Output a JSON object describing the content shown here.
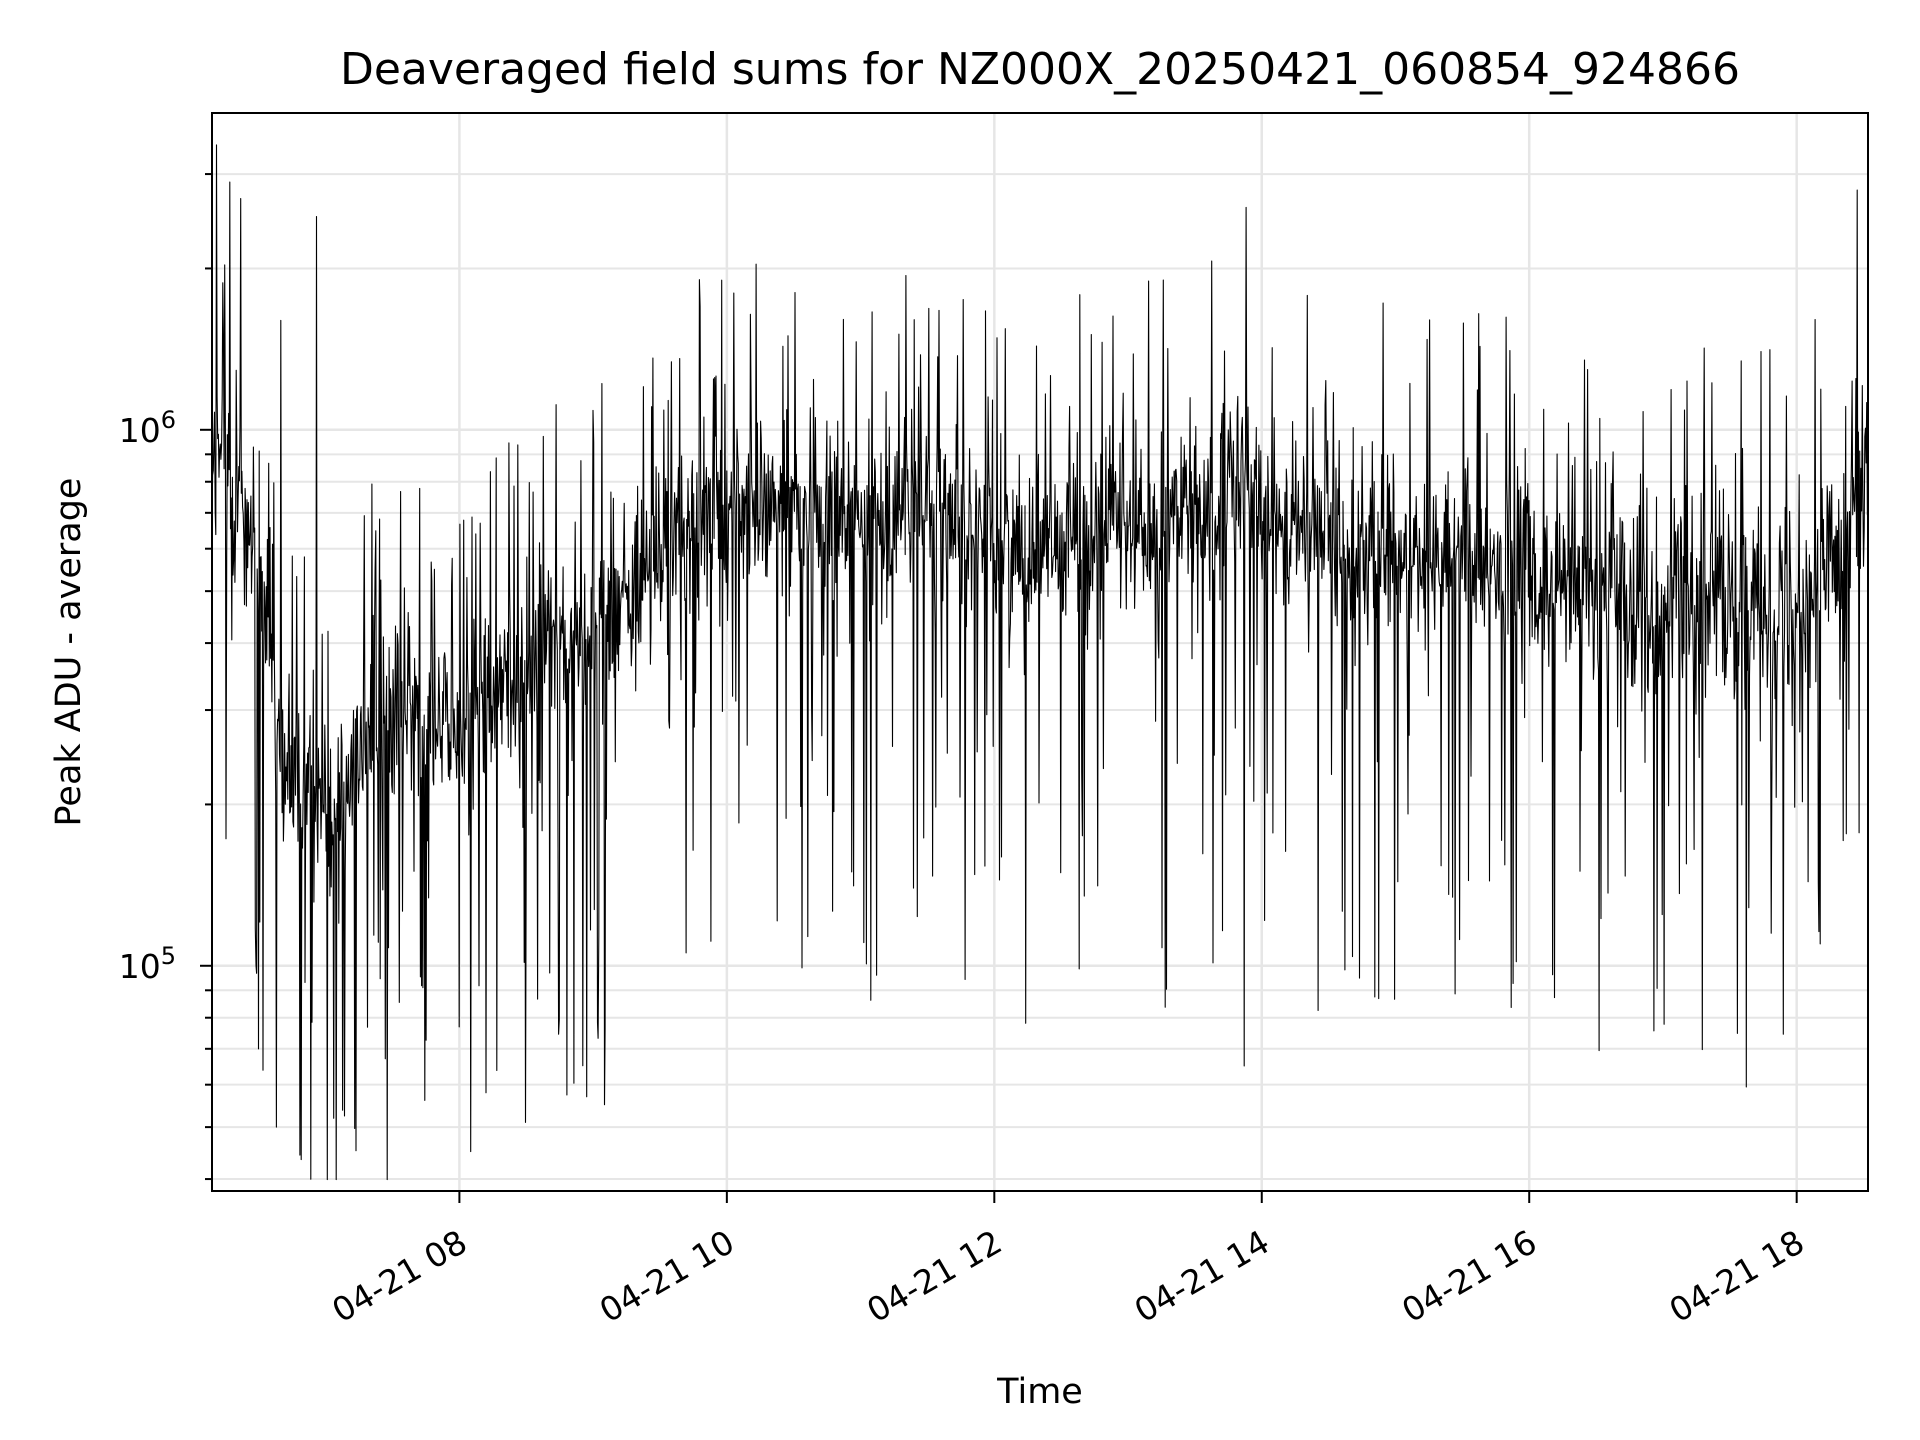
{
  "chart_data": {
    "type": "line",
    "title": "Deaveraged field sums for NZ000X_20250421_060854_924866",
    "xlabel": "Time",
    "ylabel": "Peak ADU - average",
    "yscale": "log",
    "grid": true,
    "line_color": "#000000",
    "grid_color": "#e6e6e6",
    "xlim": [
      "2025-04-21 06:09",
      "2025-04-21 18:32"
    ],
    "ylim": [
      38000,
      3900000
    ],
    "x_ticks": [
      {
        "value": "2025-04-21 08:00",
        "label": "04-21 08"
      },
      {
        "value": "2025-04-21 10:00",
        "label": "04-21 10"
      },
      {
        "value": "2025-04-21 12:00",
        "label": "04-21 12"
      },
      {
        "value": "2025-04-21 14:00",
        "label": "04-21 14"
      },
      {
        "value": "2025-04-21 16:00",
        "label": "04-21 16"
      },
      {
        "value": "2025-04-21 18:00",
        "label": "04-21 18"
      }
    ],
    "y_ticks": [
      {
        "value": 100000,
        "base": "10",
        "exp": "5"
      },
      {
        "value": 1000000,
        "base": "10",
        "exp": "6"
      }
    ],
    "trend": [
      {
        "x": "2025-04-21 06:09",
        "y": 900000
      },
      {
        "x": "2025-04-21 06:25",
        "y": 700000
      },
      {
        "x": "2025-04-21 06:35",
        "y": 400000
      },
      {
        "x": "2025-04-21 06:40",
        "y": 220000
      },
      {
        "x": "2025-04-21 07:00",
        "y": 200000
      },
      {
        "x": "2025-04-21 07:20",
        "y": 270000
      },
      {
        "x": "2025-04-21 07:45",
        "y": 300000
      },
      {
        "x": "2025-04-21 08:00",
        "y": 260000
      },
      {
        "x": "2025-04-21 08:30",
        "y": 380000
      },
      {
        "x": "2025-04-21 09:00",
        "y": 420000
      },
      {
        "x": "2025-04-21 09:30",
        "y": 580000
      },
      {
        "x": "2025-04-21 10:00",
        "y": 750000
      },
      {
        "x": "2025-04-21 10:30",
        "y": 700000
      },
      {
        "x": "2025-04-21 11:00",
        "y": 680000
      },
      {
        "x": "2025-04-21 11:30",
        "y": 720000
      },
      {
        "x": "2025-04-21 12:00",
        "y": 600000
      },
      {
        "x": "2025-04-21 12:30",
        "y": 620000
      },
      {
        "x": "2025-04-21 13:00",
        "y": 650000
      },
      {
        "x": "2025-04-21 13:30",
        "y": 700000
      },
      {
        "x": "2025-04-21 13:50",
        "y": 800000
      },
      {
        "x": "2025-04-21 14:15",
        "y": 650000
      },
      {
        "x": "2025-04-21 14:45",
        "y": 600000
      },
      {
        "x": "2025-04-21 15:15",
        "y": 580000
      },
      {
        "x": "2025-04-21 15:45",
        "y": 560000
      },
      {
        "x": "2025-04-21 16:00",
        "y": 520000
      },
      {
        "x": "2025-04-21 16:30",
        "y": 500000
      },
      {
        "x": "2025-04-21 17:00",
        "y": 490000
      },
      {
        "x": "2025-04-21 17:30",
        "y": 480000
      },
      {
        "x": "2025-04-21 18:00",
        "y": 470000
      },
      {
        "x": "2025-04-21 18:15",
        "y": 600000
      },
      {
        "x": "2025-04-21 18:32",
        "y": 800000
      }
    ],
    "peaks": [
      {
        "x": "2025-04-21 06:11",
        "y": 3400000
      },
      {
        "x": "2025-04-21 06:17",
        "y": 2900000
      },
      {
        "x": "2025-04-21 06:22",
        "y": 2700000
      },
      {
        "x": "2025-04-21 06:40",
        "y": 1600000
      },
      {
        "x": "2025-04-21 06:56",
        "y": 2500000
      },
      {
        "x": "2025-04-21 09:48",
        "y": 1700000
      },
      {
        "x": "2025-04-21 10:03",
        "y": 1800000
      },
      {
        "x": "2025-04-21 11:46",
        "y": 1750000
      },
      {
        "x": "2025-04-21 13:53",
        "y": 2600000
      },
      {
        "x": "2025-04-21 18:27",
        "y": 2800000
      }
    ],
    "troughs": [
      {
        "x": "2025-04-21 06:38",
        "y": 50000
      },
      {
        "x": "2025-04-21 08:05",
        "y": 45000
      },
      {
        "x": "2025-04-21 13:52",
        "y": 65000
      }
    ]
  }
}
